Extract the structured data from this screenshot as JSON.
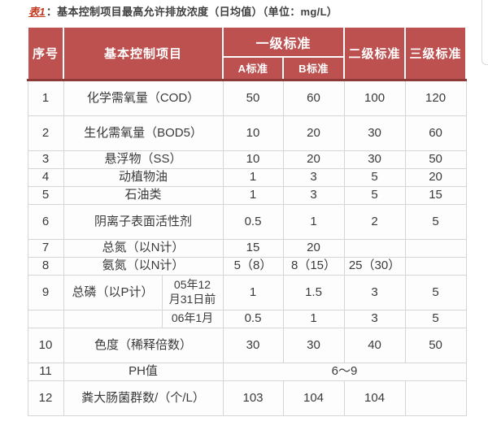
{
  "title": {
    "tag": "表1",
    "separator": "：",
    "text": "基本控制项目最高允许排放浓度（日均值）（单位：mg/L）"
  },
  "colors": {
    "header_bg": "#bd5150",
    "header_text": "#ffffff",
    "header_bottom_edge": "#8d3a38",
    "body_border": "#d6d6d6",
    "title_tag": "#c23a20",
    "body_text": "#3a3a3a",
    "page_bg": "#ffffff"
  },
  "table": {
    "header": {
      "no": "序号",
      "item": "基本控制项目",
      "level1": "一级标准",
      "level1_a": "A标准",
      "level1_b": "B标准",
      "level2": "二级标准",
      "level3": "三级标准"
    },
    "rows": [
      {
        "type": "normal",
        "h": "tall",
        "no": "1",
        "item": "化学需氧量（COD）",
        "cells": [
          "50",
          "60",
          "100",
          "120"
        ]
      },
      {
        "type": "normal",
        "h": "tall",
        "no": "2",
        "item": "生化需氧量（BOD5）",
        "cells": [
          "10",
          "20",
          "30",
          "60"
        ]
      },
      {
        "type": "normal",
        "h": "short",
        "no": "3",
        "item": "悬浮物（SS）",
        "cells": [
          "10",
          "20",
          "30",
          "50"
        ]
      },
      {
        "type": "normal",
        "h": "short",
        "no": "4",
        "item": "动植物油",
        "cells": [
          "1",
          "3",
          "5",
          "20"
        ]
      },
      {
        "type": "normal",
        "h": "short",
        "no": "5",
        "item": "石油类",
        "cells": [
          "1",
          "3",
          "5",
          "15"
        ]
      },
      {
        "type": "normal",
        "h": "tall",
        "no": "6",
        "item": "阴离子表面活性剂",
        "cells": [
          "0.5",
          "1",
          "2",
          "5"
        ]
      },
      {
        "type": "normal",
        "h": "short",
        "no": "7",
        "item": "总氮（以N计）",
        "cells": [
          "15",
          "20",
          "",
          ""
        ]
      },
      {
        "type": "normal",
        "h": "short",
        "no": "8",
        "item": "氨氮（以N计）",
        "cells": [
          "5（8）",
          "8（15）",
          "25（30）",
          ""
        ]
      },
      {
        "type": "split",
        "h": "tall",
        "no": "9",
        "item": "总磷（以P计）",
        "date": "05年12\n月31日前",
        "cells": [
          "1",
          "1.5",
          "3",
          "5"
        ]
      },
      {
        "type": "split",
        "h": "short",
        "no": "",
        "item": "",
        "date": "06年1月",
        "cells": [
          "0.5",
          "1",
          "3",
          "5"
        ]
      },
      {
        "type": "normal",
        "h": "tall",
        "no": "10",
        "item": "色度（稀释倍数）",
        "cells": [
          "30",
          "30",
          "40",
          "50"
        ]
      },
      {
        "type": "span",
        "h": "short",
        "no": "11",
        "item": "PH值",
        "span_value": "6～9"
      },
      {
        "type": "normal",
        "h": "tall",
        "no": "12",
        "item": "粪大肠菌群数/（个/L）",
        "cells": [
          "103",
          "104",
          "104",
          ""
        ]
      }
    ]
  }
}
